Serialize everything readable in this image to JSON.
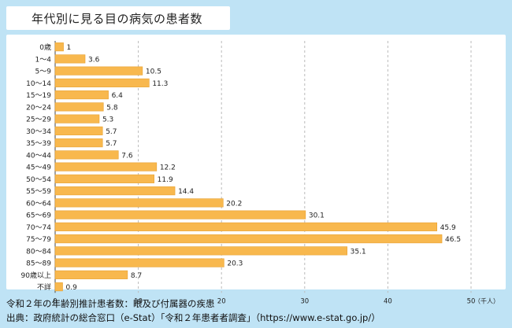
{
  "title": "年代別に見る目の病気の患者数",
  "footer": {
    "note": "令和２年の年齢別推計患者数：眼及び付属器の疾患",
    "source": "出典：政府統計の総合窓口（e-Stat）「令和２年患者者調査」（https://www.e-stat.go.jp/）"
  },
  "chart_data": {
    "type": "bar",
    "orientation": "horizontal",
    "title": "年代別に見る目の病気の患者数",
    "xlabel": "",
    "ylabel": "",
    "unit_label": "（千人）",
    "categories": [
      "0歳",
      "1～4",
      "5～9",
      "10～14",
      "15～19",
      "20～24",
      "25～29",
      "30～34",
      "35～39",
      "40～44",
      "45～49",
      "50～54",
      "55～59",
      "60～64",
      "65～69",
      "70～74",
      "75～79",
      "80～84",
      "85～89",
      "90歳以上",
      "不詳"
    ],
    "values": [
      1,
      3.6,
      10.5,
      11.3,
      6.4,
      5.8,
      5.3,
      5.7,
      5.7,
      7.6,
      12.2,
      11.9,
      14.4,
      20.2,
      30.1,
      45.9,
      46.5,
      35.1,
      20.3,
      8.7,
      0.9
    ],
    "value_labels": [
      "1",
      "3.6",
      "10.5",
      "11.3",
      "6.4",
      "5.8",
      "5.3",
      "5.7",
      "5.7",
      "7.6",
      "12.2",
      "11.9",
      "14.4",
      "20.2",
      "30.1",
      "45.9",
      "46.5",
      "35.1",
      "20.3",
      "8.7",
      "0.9"
    ],
    "xlim": [
      0,
      50
    ],
    "xticks": [
      0,
      10,
      20,
      30,
      40,
      50
    ],
    "xtick_labels": [
      "0",
      "10",
      "20",
      "30",
      "40",
      "50"
    ],
    "grid": true,
    "colors": {
      "bar": "#f8b84e",
      "bar_stroke": "#e8a030",
      "grid": "#bbbbbb",
      "axis": "#444444"
    }
  }
}
